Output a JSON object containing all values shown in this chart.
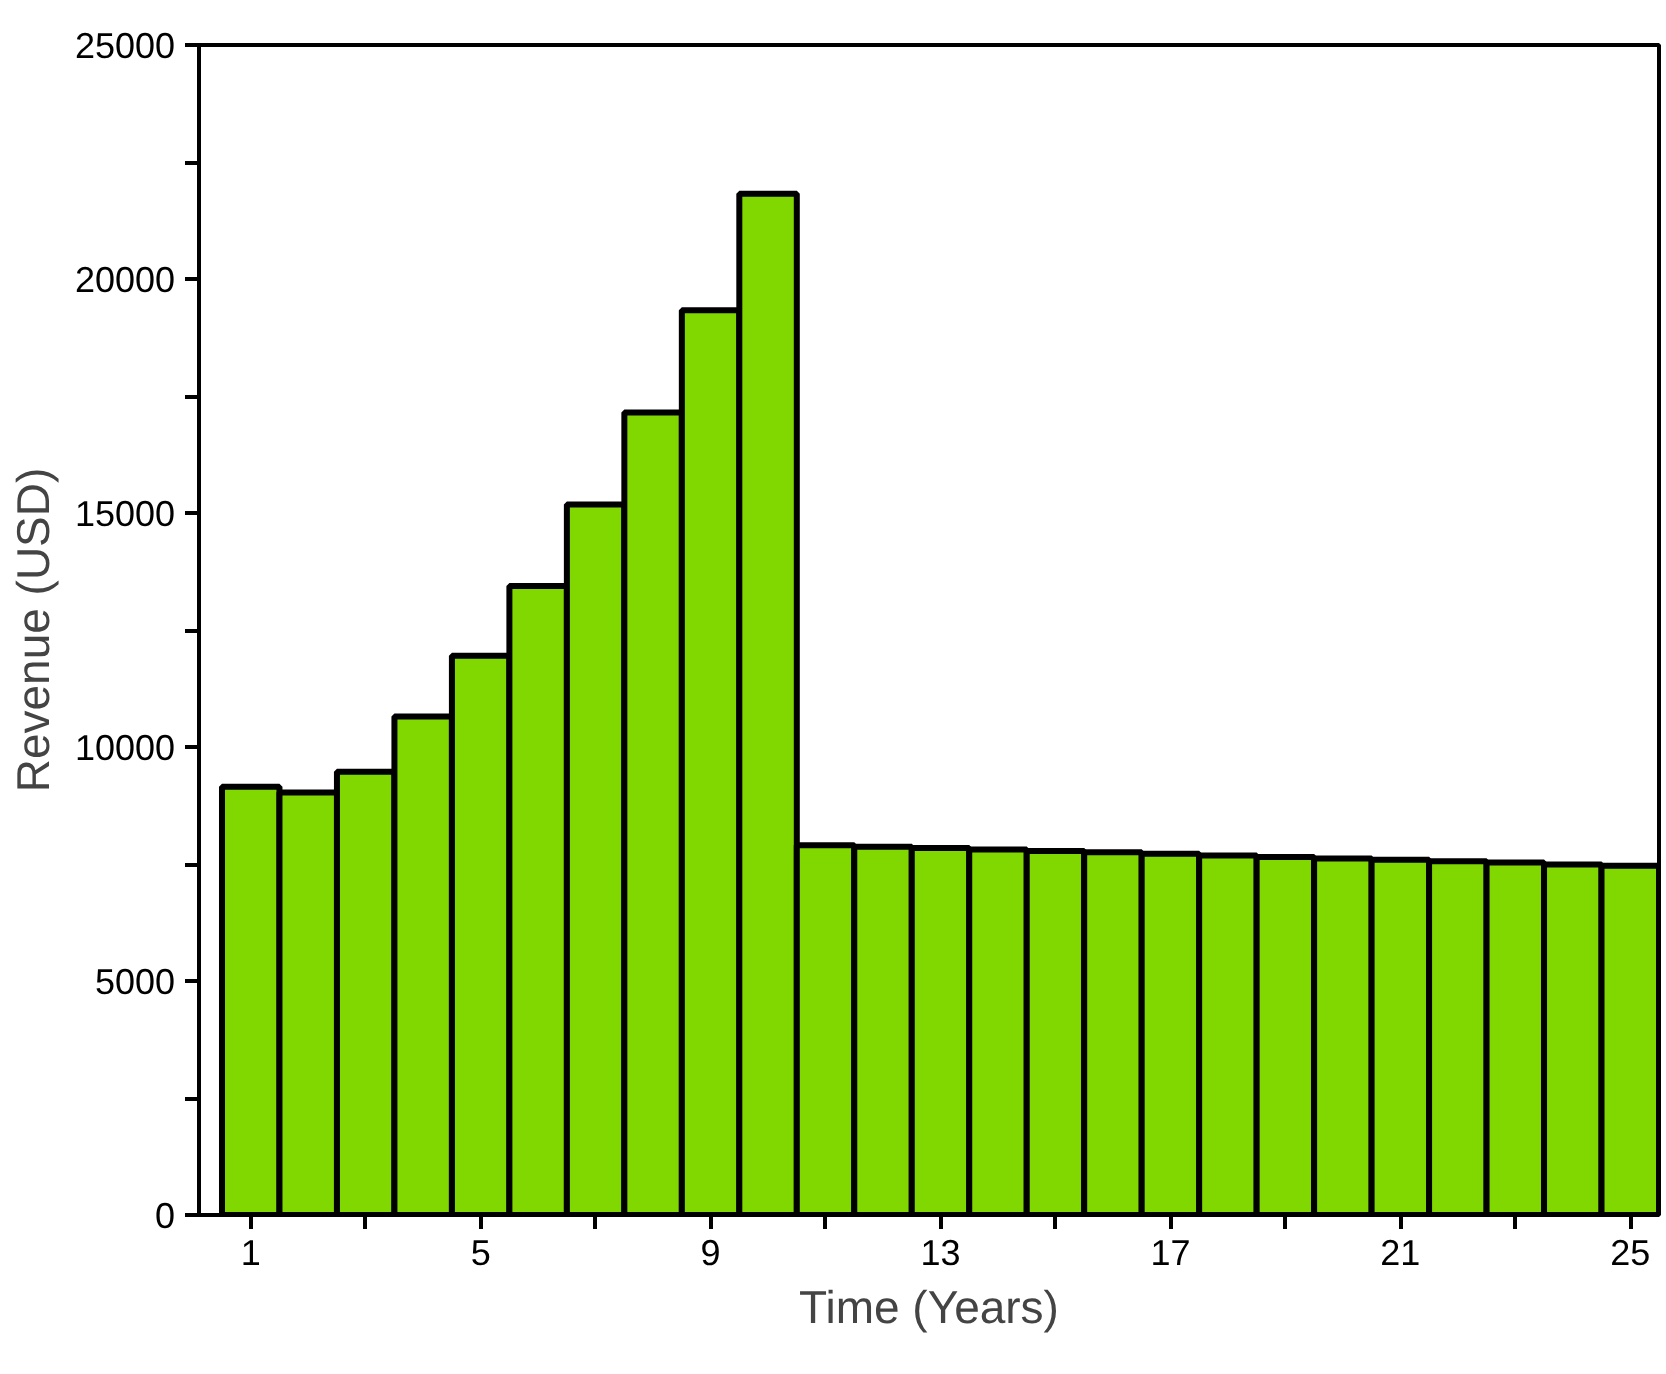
{
  "chart_data": {
    "type": "bar",
    "xlabel": "Time (Years)",
    "ylabel": "Revenue (USD)",
    "x": [
      1,
      2,
      3,
      4,
      5,
      6,
      7,
      8,
      9,
      10,
      11,
      12,
      13,
      14,
      15,
      16,
      17,
      18,
      19,
      20,
      21,
      22,
      23,
      24,
      25
    ],
    "values": [
      9150,
      9030,
      9470,
      10650,
      11950,
      13440,
      15180,
      17150,
      19330,
      21820,
      7900,
      7870,
      7840,
      7810,
      7780,
      7750,
      7720,
      7680,
      7650,
      7620,
      7590,
      7560,
      7530,
      7490,
      7460
    ],
    "color": "#80d800",
    "xlim": [
      0.1,
      25.5
    ],
    "xticks": [
      1,
      {
        "value": 3,
        "label": null
      },
      5,
      {
        "value": 7,
        "label": null
      },
      9,
      {
        "value": 11,
        "label": null
      },
      13,
      {
        "value": 15,
        "label": null
      },
      17,
      {
        "value": 19,
        "label": null
      },
      21,
      {
        "value": 23,
        "label": null
      },
      25
    ],
    "ylim": [
      0,
      25000
    ],
    "yticks": [
      0,
      {
        "value": 2500,
        "label": null
      },
      5000,
      {
        "value": 7500,
        "label": null
      },
      10000,
      {
        "value": 12500,
        "label": null
      },
      15000,
      {
        "value": 17500,
        "label": null
      },
      20000,
      {
        "value": 22500,
        "label": null
      },
      25000
    ],
    "grid": false
  }
}
